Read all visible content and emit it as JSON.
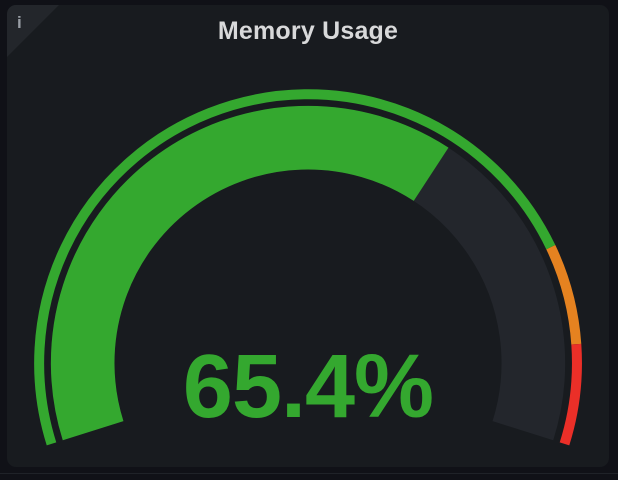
{
  "page": {
    "background": "#101117"
  },
  "panel": {
    "title": "Memory Usage",
    "info_icon_glyph": "i",
    "background": "#181b1f",
    "title_color": "#d8d9da",
    "info_corner_color": "#23262b"
  },
  "chart_data": {
    "type": "gauge",
    "title": "Memory Usage",
    "value": 65.4,
    "unit": "%",
    "display_value": "65.4%",
    "min": 0,
    "max": 100,
    "value_color": "#34a82f",
    "track_color": "#23262c",
    "thresholds": [
      {
        "value": 0,
        "color": "#34a82f"
      },
      {
        "value": 80,
        "color": "#e58220"
      },
      {
        "value": 90,
        "color": "#eb2f28"
      }
    ],
    "layout_hints": {
      "arc_span_deg": 215,
      "threshold_ring": "thin outer band",
      "legend": "none",
      "grid": "off"
    }
  }
}
